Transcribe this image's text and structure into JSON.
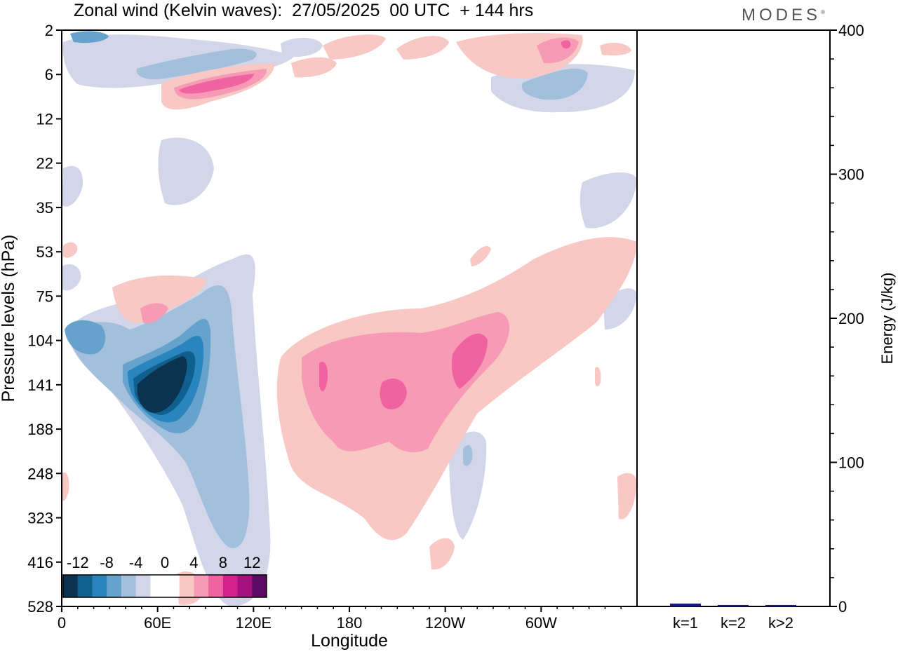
{
  "title": "Zonal wind (Kelvin waves):  27/05/2025  00 UTC  + 144 hrs",
  "brand": "MODES",
  "brand_mark": "®",
  "chart_data": [
    {
      "type": "heatmap",
      "variable": "Zonal wind (Kelvin waves)",
      "xlabel": "Longitude",
      "ylabel": "Pressure levels (hPa)",
      "x_ticks": [
        "0",
        "60E",
        "120E",
        "180",
        "120W",
        "60W"
      ],
      "x_tick_degrees": [
        0,
        60,
        120,
        180,
        240,
        300
      ],
      "xlim": [
        0,
        360
      ],
      "y_ticks": [
        "2",
        "6",
        "12",
        "22",
        "35",
        "53",
        "75",
        "104",
        "141",
        "188",
        "248",
        "323",
        "416",
        "528"
      ],
      "colorbar": {
        "labels": [
          "-12",
          "-8",
          "-4",
          "0",
          "4",
          "8",
          "12"
        ],
        "colors": [
          "#0b3350",
          "#10608f",
          "#2a85bf",
          "#66a3cc",
          "#a2bfdc",
          "#d3d6e8",
          "#ffffff",
          "#ffffff",
          "#f8c8c4",
          "#f79ab6",
          "#ef63a0",
          "#d3218c",
          "#a3127e",
          "#5c0a63"
        ]
      },
      "features": [
        {
          "lon": 43,
          "level": "141",
          "value": -16
        },
        {
          "lon": 30,
          "level": "104",
          "value": -6
        },
        {
          "lon": 95,
          "level": "188",
          "value": -6
        },
        {
          "lon": 55,
          "level": "6",
          "value": -4
        },
        {
          "lon": 12,
          "level": "2",
          "value": -8
        },
        {
          "lon": 305,
          "level": "6",
          "value": -6
        },
        {
          "lon": 195,
          "level": "141",
          "value": 8
        },
        {
          "lon": 165,
          "level": "141",
          "value": 7
        },
        {
          "lon": 250,
          "level": "141",
          "value": 8
        },
        {
          "lon": 95,
          "level": "6",
          "value": 9
        },
        {
          "lon": 280,
          "level": "2",
          "value": 6
        },
        {
          "lon": 60,
          "level": "104",
          "value": 5
        },
        {
          "lon": 220,
          "level": "248",
          "value": 2
        }
      ]
    },
    {
      "type": "bar",
      "categories": [
        "k=1",
        "k=2",
        "k>2"
      ],
      "values": [
        2,
        1,
        1
      ],
      "ylabel": "Energy (J/kg)",
      "ylim": [
        0,
        400
      ],
      "y_ticks": [
        0,
        100,
        200,
        300,
        400
      ],
      "bar_color": "#1a1a7a"
    }
  ]
}
